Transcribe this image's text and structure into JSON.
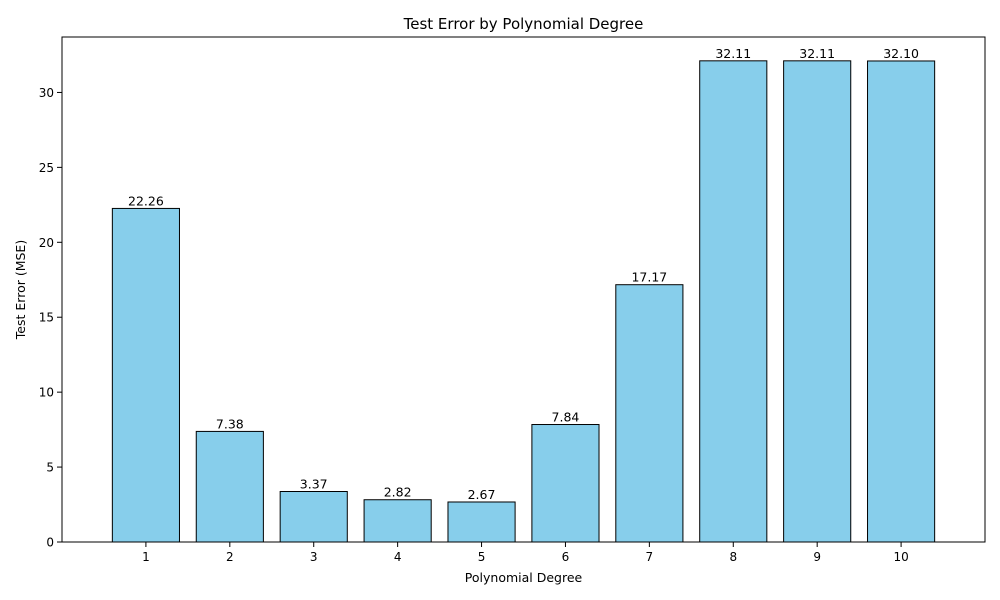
{
  "chart_data": {
    "type": "bar",
    "title": "Test Error by Polynomial Degree",
    "xlabel": "Polynomial Degree",
    "ylabel": "Test Error (MSE)",
    "categories": [
      "1",
      "2",
      "3",
      "4",
      "5",
      "6",
      "7",
      "8",
      "9",
      "10"
    ],
    "values": [
      22.26,
      7.38,
      3.37,
      2.82,
      2.67,
      7.84,
      17.17,
      32.11,
      32.11,
      32.1
    ],
    "value_labels": [
      "22.26",
      "7.38",
      "3.37",
      "2.82",
      "2.67",
      "7.84",
      "17.17",
      "32.11",
      "32.11",
      "32.10"
    ],
    "ylim": [
      0,
      33.7
    ],
    "yticks": [
      0,
      5,
      10,
      15,
      20,
      25,
      30
    ],
    "grid": false,
    "bar_color": "#87ceeb",
    "edge_color": "#000000"
  }
}
